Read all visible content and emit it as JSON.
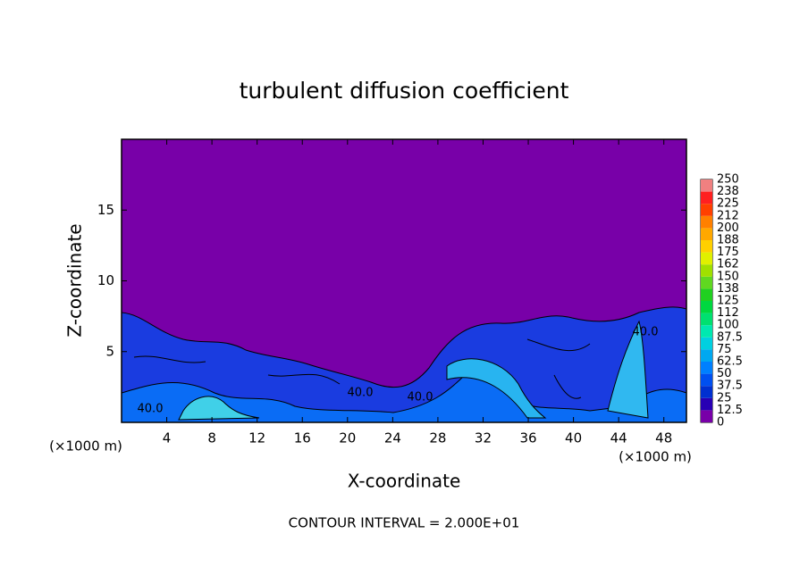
{
  "chart_data": {
    "type": "contour",
    "title": "turbulent diffusion coefficient",
    "x_label": "X-coordinate",
    "y_label": "Z-coordinate",
    "x_unit": "(×1000 m)",
    "note": "CONTOUR INTERVAL = 2.000E+01",
    "xlim": [
      0,
      50
    ],
    "xticks": [
      4,
      8,
      12,
      16,
      20,
      24,
      28,
      32,
      36,
      40,
      44,
      48
    ],
    "ylim": [
      0,
      20
    ],
    "yticks": [
      5,
      10,
      15
    ],
    "levels": [
      0,
      12.5,
      25,
      37.5,
      50,
      62.5,
      75,
      87.5,
      100,
      112,
      125,
      138,
      150,
      162,
      175,
      188,
      200,
      212,
      225,
      238,
      250
    ],
    "colors": [
      "#7800a8",
      "#2800b4",
      "#0030d0",
      "#0050f0",
      "#0080ff",
      "#00a8f0",
      "#00d0e0",
      "#00e8b0",
      "#00e070",
      "#00d840",
      "#20d020",
      "#60d820",
      "#a0e000",
      "#e0f000",
      "#ffd000",
      "#ffa800",
      "#ff8000",
      "#ff4000",
      "#ff2020",
      "#f08080"
    ],
    "contour_labels": [
      {
        "value": 40,
        "label": "40.0"
      },
      {
        "value": 40,
        "label": "40.0"
      },
      {
        "value": 40,
        "label": "40.0"
      },
      {
        "value": 40,
        "label": "40.0"
      }
    ]
  }
}
